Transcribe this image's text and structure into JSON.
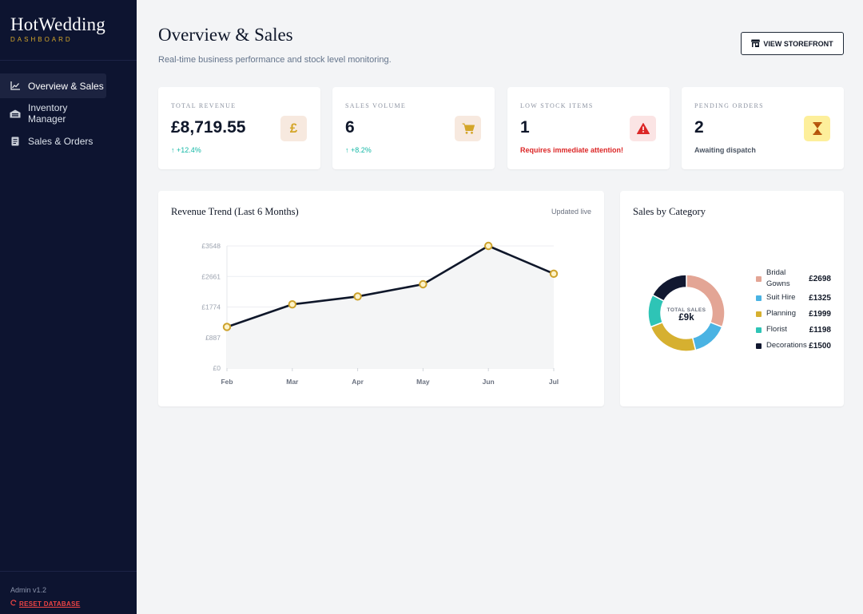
{
  "brand": {
    "name": "HotWedding",
    "subtitle": "DASHBOARD"
  },
  "sidebar": {
    "items": [
      {
        "label": "Overview & Sales",
        "icon": "chart-line-icon",
        "active": true
      },
      {
        "label": "Inventory Manager",
        "icon": "warehouse-icon",
        "active": false
      },
      {
        "label": "Sales & Orders",
        "icon": "receipt-icon",
        "active": false
      }
    ],
    "version": "Admin v1.2",
    "reset_label": "RESET DATABASE"
  },
  "header": {
    "title": "Overview & Sales",
    "subtitle": "Real-time business performance and stock level monitoring.",
    "storefront_label": "VIEW STOREFRONT"
  },
  "stats": [
    {
      "label": "TOTAL REVENUE",
      "value": "£8,719.55",
      "note": "+12.4%",
      "note_type": "up",
      "icon": "pound-icon",
      "icon_bg": "#f7e9df",
      "icon_color": "#d4a62a"
    },
    {
      "label": "SALES VOLUME",
      "value": "6",
      "note": "+8.2%",
      "note_type": "up",
      "icon": "cart-icon",
      "icon_bg": "#f7e9df",
      "icon_color": "#d4a62a"
    },
    {
      "label": "LOW STOCK ITEMS",
      "value": "1",
      "note": "Requires immediate attention!",
      "note_type": "danger",
      "icon": "warning-icon",
      "icon_bg": "#fbe4e4",
      "icon_color": "#dc2626"
    },
    {
      "label": "PENDING ORDERS",
      "value": "2",
      "note": "Awaiting dispatch",
      "note_type": "muted",
      "icon": "hourglass-icon",
      "icon_bg": "#fdef9b",
      "icon_color": "#b45309"
    }
  ],
  "revenue_panel": {
    "title": "Revenue Trend (Last 6 Months)",
    "meta": "Updated live"
  },
  "category_panel": {
    "title": "Sales by Category",
    "center_label": "TOTAL SALES",
    "center_value": "£9k"
  },
  "colors": {
    "sidebar_bg": "#0d1430",
    "accent_gold": "#d4a62a",
    "line": "#0f172a",
    "danger": "#dc2626",
    "positive": "#14b8a6"
  },
  "chart_data": [
    {
      "type": "line",
      "title": "Revenue Trend (Last 6 Months)",
      "categories": [
        "Feb",
        "Mar",
        "Apr",
        "May",
        "Jun",
        "Jul"
      ],
      "values": [
        1195,
        1850,
        2080,
        2435,
        3548,
        2740
      ],
      "yticks": [
        "£0",
        "£887",
        "£1774",
        "£2661",
        "£3548"
      ],
      "ylim": [
        0,
        3548
      ],
      "grid": true
    },
    {
      "type": "pie",
      "title": "Sales by Category",
      "categories": [
        "Bridal Gowns",
        "Suit Hire",
        "Planning",
        "Florist",
        "Decorations"
      ],
      "values": [
        2698,
        1325,
        1999,
        1198,
        1500
      ],
      "value_labels": [
        "£2698",
        "£1325",
        "£1999",
        "£1198",
        "£1500"
      ],
      "colors": [
        "#e3a595",
        "#4ab3e3",
        "#d6b030",
        "#2ec4b6",
        "#111830"
      ],
      "legend": "right"
    }
  ]
}
